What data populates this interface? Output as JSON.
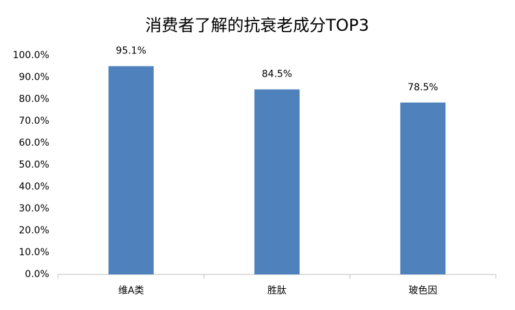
{
  "chart_data": {
    "type": "bar",
    "title": "消费者了解的抗衰老成分TOP3",
    "categories": [
      "维A类",
      "胜肽",
      "玻色因"
    ],
    "values": [
      95.1,
      84.5,
      78.5
    ],
    "value_labels": [
      "95.1%",
      "84.5%",
      "78.5%"
    ],
    "color": "#4f81bd",
    "ylim": [
      0,
      100
    ],
    "yticks": [
      {
        "value": 0,
        "label": "0.0%"
      },
      {
        "value": 10,
        "label": "10.0%"
      },
      {
        "value": 20,
        "label": "20.0%"
      },
      {
        "value": 30,
        "label": "30.0%"
      },
      {
        "value": 40,
        "label": "40.0%"
      },
      {
        "value": 50,
        "label": "50.0%"
      },
      {
        "value": 60,
        "label": "60.0%"
      },
      {
        "value": 70,
        "label": "70.0%"
      },
      {
        "value": 80,
        "label": "80.0%"
      },
      {
        "value": 90,
        "label": "90.0%"
      },
      {
        "value": 100,
        "label": "100.0%"
      }
    ],
    "grid": false
  }
}
